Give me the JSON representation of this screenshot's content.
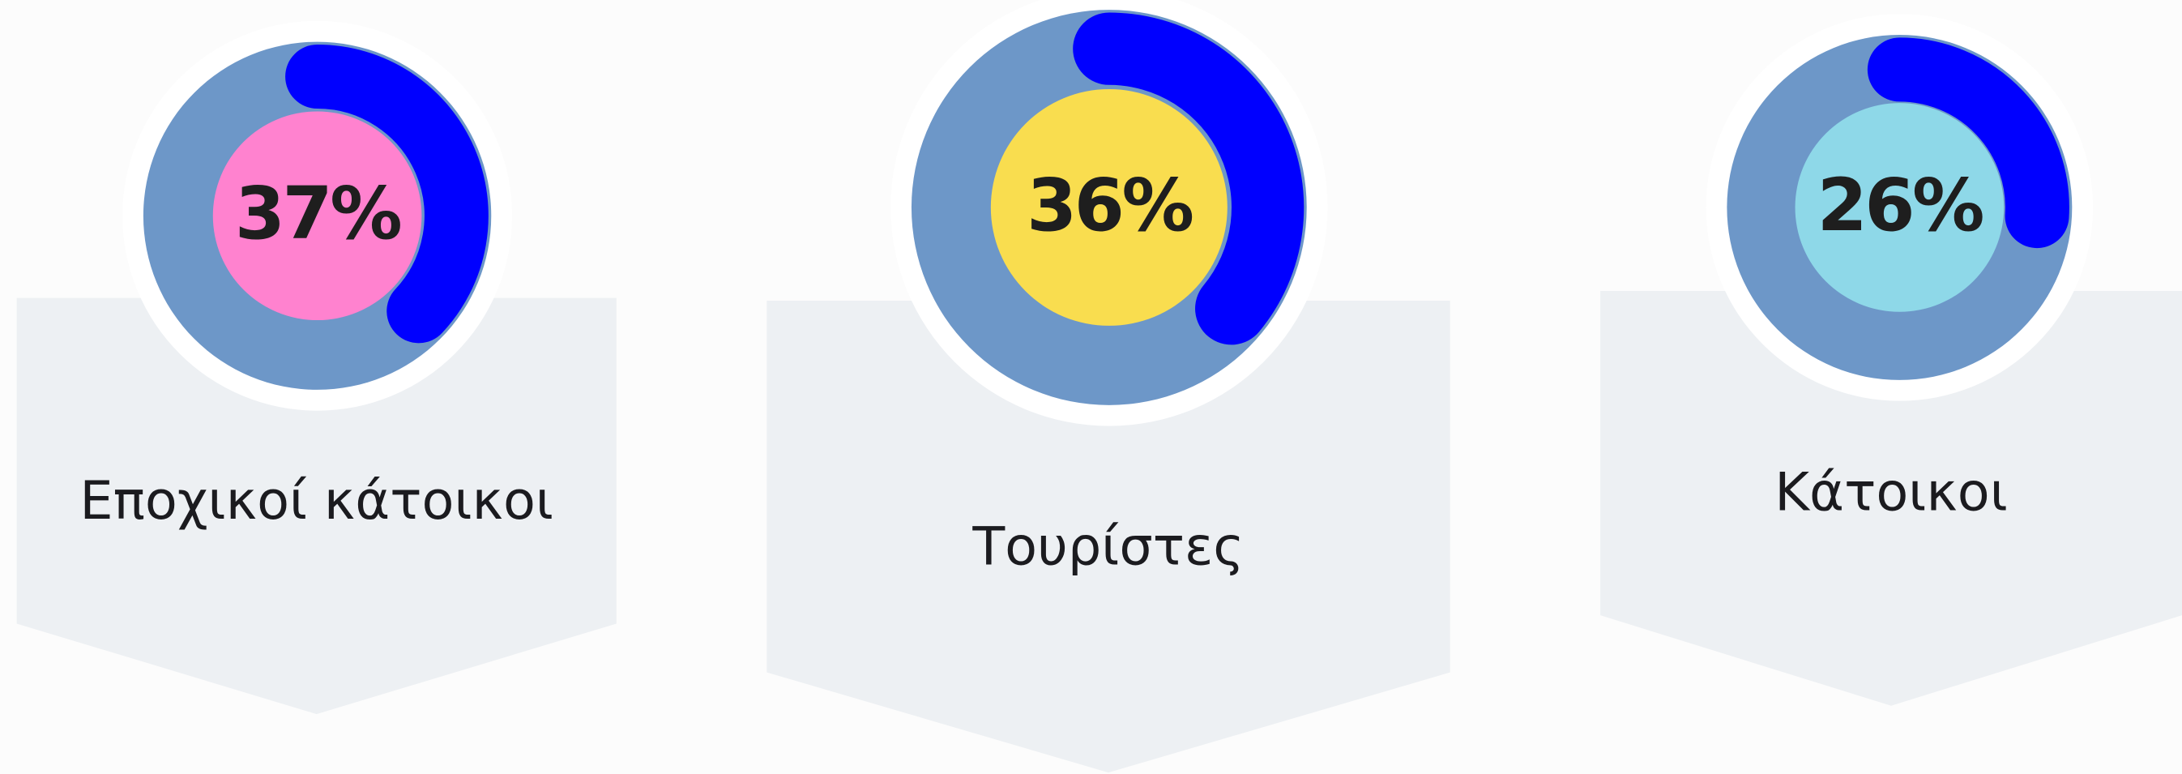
{
  "chart_data": {
    "type": "gauge",
    "categories": [
      "Εποχικοί κάτοικοι",
      "Τουρίστες",
      "Κάτοικοι"
    ],
    "values": [
      37,
      36,
      26
    ],
    "value_labels": [
      "37%",
      "36%",
      "26%"
    ],
    "colors": [
      "#ff82cf",
      "#f9dd4f",
      "#8ed8e8"
    ],
    "ring_color": "#6d97c8",
    "arc_color": "#0000ff"
  }
}
